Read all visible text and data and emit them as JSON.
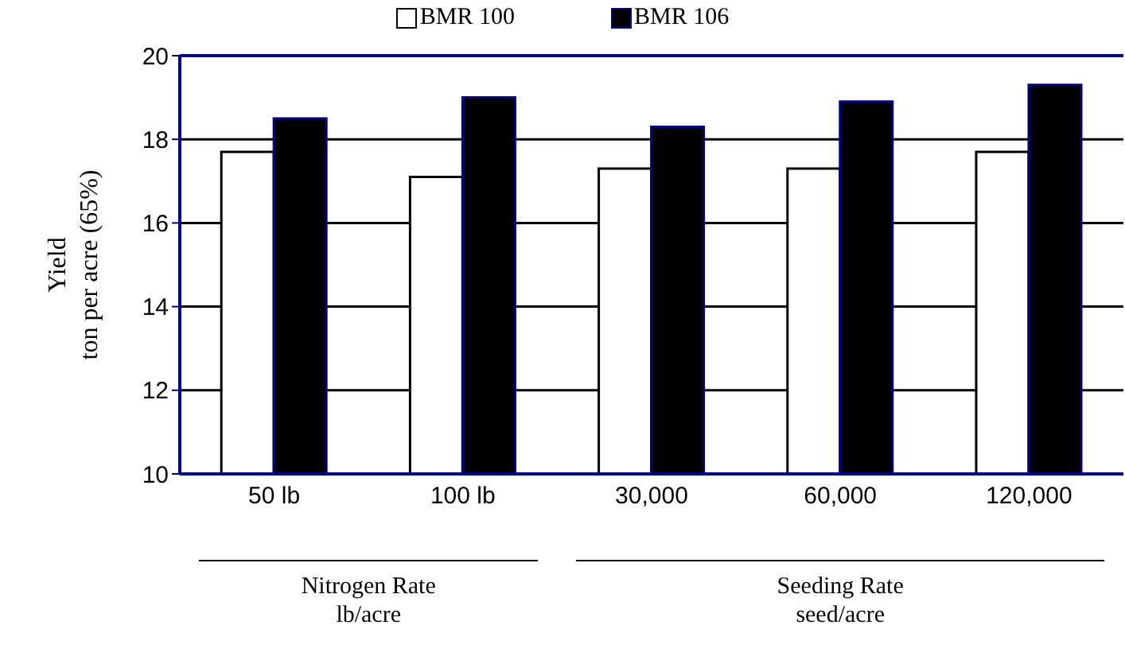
{
  "chart_data": {
    "type": "bar",
    "ylabel": "Yield\nton per acre (65%)",
    "categories": [
      "50 lb",
      "100 lb",
      "30,000",
      "60,000",
      "120,000"
    ],
    "series": [
      {
        "name": "BMR 100",
        "color": "#ffffff",
        "values": [
          17.7,
          17.1,
          17.3,
          17.3,
          17.7
        ]
      },
      {
        "name": "BMR 106",
        "color": "#000000",
        "values": [
          18.5,
          19.0,
          18.3,
          18.9,
          19.3
        ]
      }
    ],
    "ylim": [
      10,
      20
    ],
    "yticks": [
      10,
      12,
      14,
      16,
      18,
      20
    ],
    "grid": "y",
    "legend": "top",
    "annotations": [
      "Nitrogen Rate\nlb/acre",
      "Seeding Rate\nseed/acre"
    ]
  }
}
